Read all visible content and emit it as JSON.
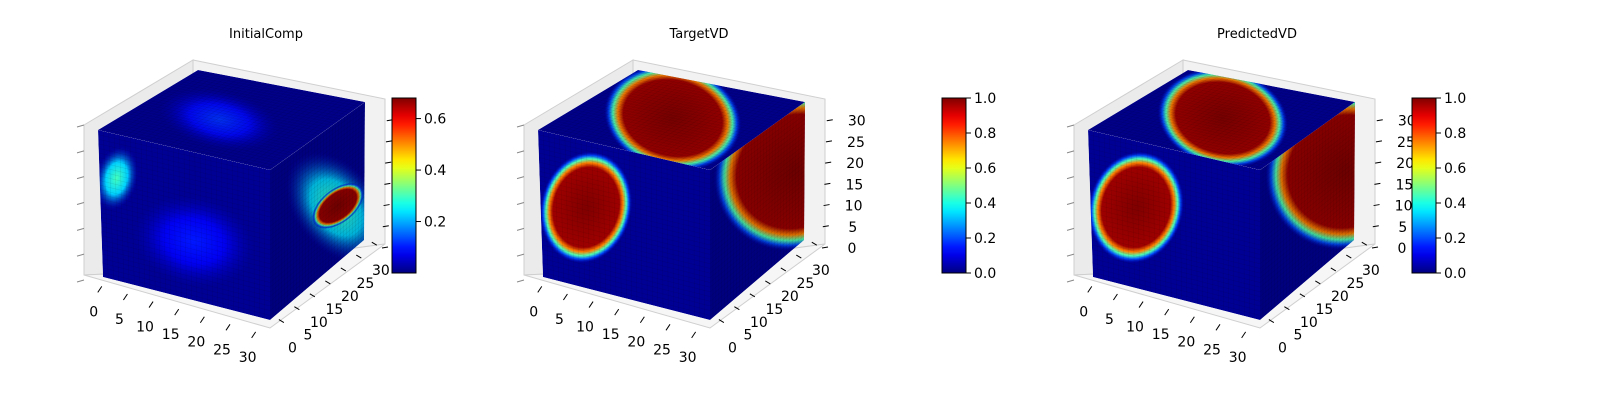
{
  "colors": {
    "pane": "#ebebeb",
    "grid": "#d9d9d9",
    "cube_base": "#000080"
  },
  "chart_data": [
    {
      "type": "heatmap",
      "subtype": "3d-voxel",
      "title": "InitialComp",
      "colormap": "jet",
      "clim": [
        0,
        0.68
      ],
      "colorbar_ticks": [
        "0.2",
        "0.4",
        "0.6"
      ],
      "colorbar_tick_values": [
        0.2,
        0.4,
        0.6
      ],
      "x_ticks": [
        "0",
        "5",
        "10",
        "15",
        "20",
        "25",
        "30"
      ],
      "y_ticks": [
        "0",
        "5",
        "10",
        "15",
        "20",
        "25",
        "30"
      ],
      "z_ticks": [],
      "blobs": [
        {
          "face": "front",
          "u": 0.1,
          "v": 0.3,
          "ru": 0.12,
          "rv": 0.22,
          "value": 0.3
        },
        {
          "face": "front",
          "u": 0.55,
          "v": 0.6,
          "ru": 0.35,
          "rv": 0.3,
          "value": 0.1
        },
        {
          "face": "top",
          "u": 0.45,
          "v": 0.55,
          "ru": 0.35,
          "rv": 0.25,
          "value": 0.12
        },
        {
          "face": "right",
          "u": 0.7,
          "v": 0.6,
          "ru": 0.35,
          "rv": 0.45,
          "value": 0.3
        },
        {
          "face": "right",
          "u": 0.72,
          "v": 0.6,
          "ru": 0.25,
          "rv": 0.12,
          "value": 0.68
        }
      ]
    },
    {
      "type": "heatmap",
      "subtype": "3d-voxel",
      "title": "TargetVD",
      "colormap": "jet",
      "clim": [
        0,
        1
      ],
      "colorbar_ticks": [
        "0.0",
        "0.2",
        "0.4",
        "0.6",
        "0.8",
        "1.0"
      ],
      "colorbar_tick_values": [
        0,
        0.2,
        0.4,
        0.6,
        0.8,
        1.0
      ],
      "x_ticks": [
        "0",
        "5",
        "10",
        "15",
        "20",
        "25",
        "30"
      ],
      "y_ticks": [
        "0",
        "5",
        "10",
        "15",
        "20",
        "25",
        "30"
      ],
      "z_ticks": [
        "0",
        "5",
        "10",
        "15",
        "20",
        "25",
        "30"
      ],
      "blobs": [
        {
          "face": "front",
          "u": 0.27,
          "v": 0.45,
          "ru": 0.26,
          "rv": 0.38,
          "value": 1.0
        },
        {
          "face": "top",
          "u": 0.5,
          "v": 0.5,
          "ru": 0.4,
          "rv": 0.45,
          "value": 1.0
        },
        {
          "face": "right",
          "u": 0.9,
          "v": 0.45,
          "ru": 0.7,
          "rv": 0.55,
          "value": 1.0
        }
      ]
    },
    {
      "type": "heatmap",
      "subtype": "3d-voxel",
      "title": "PredictedVD",
      "colormap": "jet",
      "clim": [
        0,
        1
      ],
      "colorbar_ticks": [
        "0.0",
        "0.2",
        "0.4",
        "0.6",
        "0.8",
        "1.0"
      ],
      "colorbar_tick_values": [
        0,
        0.2,
        0.4,
        0.6,
        0.8,
        1.0
      ],
      "x_ticks": [
        "0",
        "5",
        "10",
        "15",
        "20",
        "25",
        "30"
      ],
      "y_ticks": [
        "0",
        "5",
        "10",
        "15",
        "20",
        "25",
        "30"
      ],
      "z_ticks": [
        "0",
        "5",
        "10",
        "15",
        "20",
        "25",
        "30"
      ],
      "blobs": [
        {
          "face": "front",
          "u": 0.27,
          "v": 0.45,
          "ru": 0.27,
          "rv": 0.38,
          "value": 1.0
        },
        {
          "face": "top",
          "u": 0.5,
          "v": 0.5,
          "ru": 0.38,
          "rv": 0.42,
          "value": 1.0
        },
        {
          "face": "right",
          "u": 0.9,
          "v": 0.45,
          "ru": 0.68,
          "rv": 0.55,
          "value": 1.0
        }
      ]
    }
  ]
}
